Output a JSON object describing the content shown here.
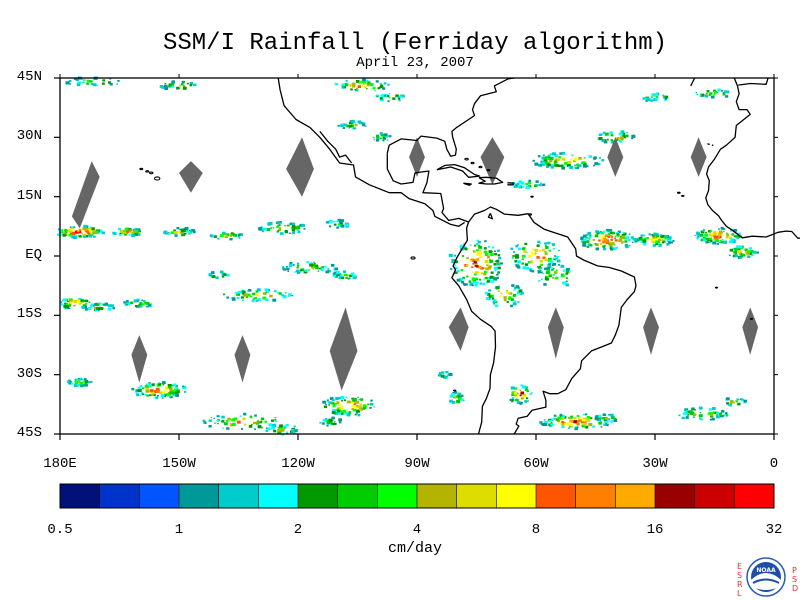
{
  "title": "SSM/I Rainfall (Ferriday algorithm)",
  "date": "April 23, 2007",
  "latitude_labels": [
    "45N",
    "30N",
    "15N",
    "EQ",
    "15S",
    "30S",
    "45S"
  ],
  "latitude_values": [
    45,
    30,
    15,
    0,
    -15,
    -30,
    -45
  ],
  "longitude_labels": [
    "180E",
    "150W",
    "120W",
    "90W",
    "60W",
    "30W",
    "0"
  ],
  "longitude_values": [
    -180,
    -150,
    -120,
    -90,
    -60,
    -30,
    0
  ],
  "colorbar": {
    "units": "cm/day",
    "tick_labels": [
      "0.5",
      "1",
      "2",
      "4",
      "8",
      "16",
      "32"
    ],
    "tick_values": [
      0.5,
      1,
      2,
      4,
      8,
      16,
      32
    ],
    "colors": [
      "#00127a",
      "#0033cc",
      "#0055ff",
      "#00999a",
      "#00cccc",
      "#00ffff",
      "#009900",
      "#00cc00",
      "#00ff00",
      "#b4b400",
      "#dddd00",
      "#ffff00",
      "#ff5500",
      "#ff8000",
      "#ffaa00",
      "#990000",
      "#cc0000",
      "#ff0000"
    ]
  },
  "no_data_color": "#666666",
  "logo": {
    "left_letters": [
      "E",
      "S",
      "R",
      "L"
    ],
    "right_letters": [
      "P",
      "S",
      "D"
    ],
    "seal": "NOAA"
  }
}
